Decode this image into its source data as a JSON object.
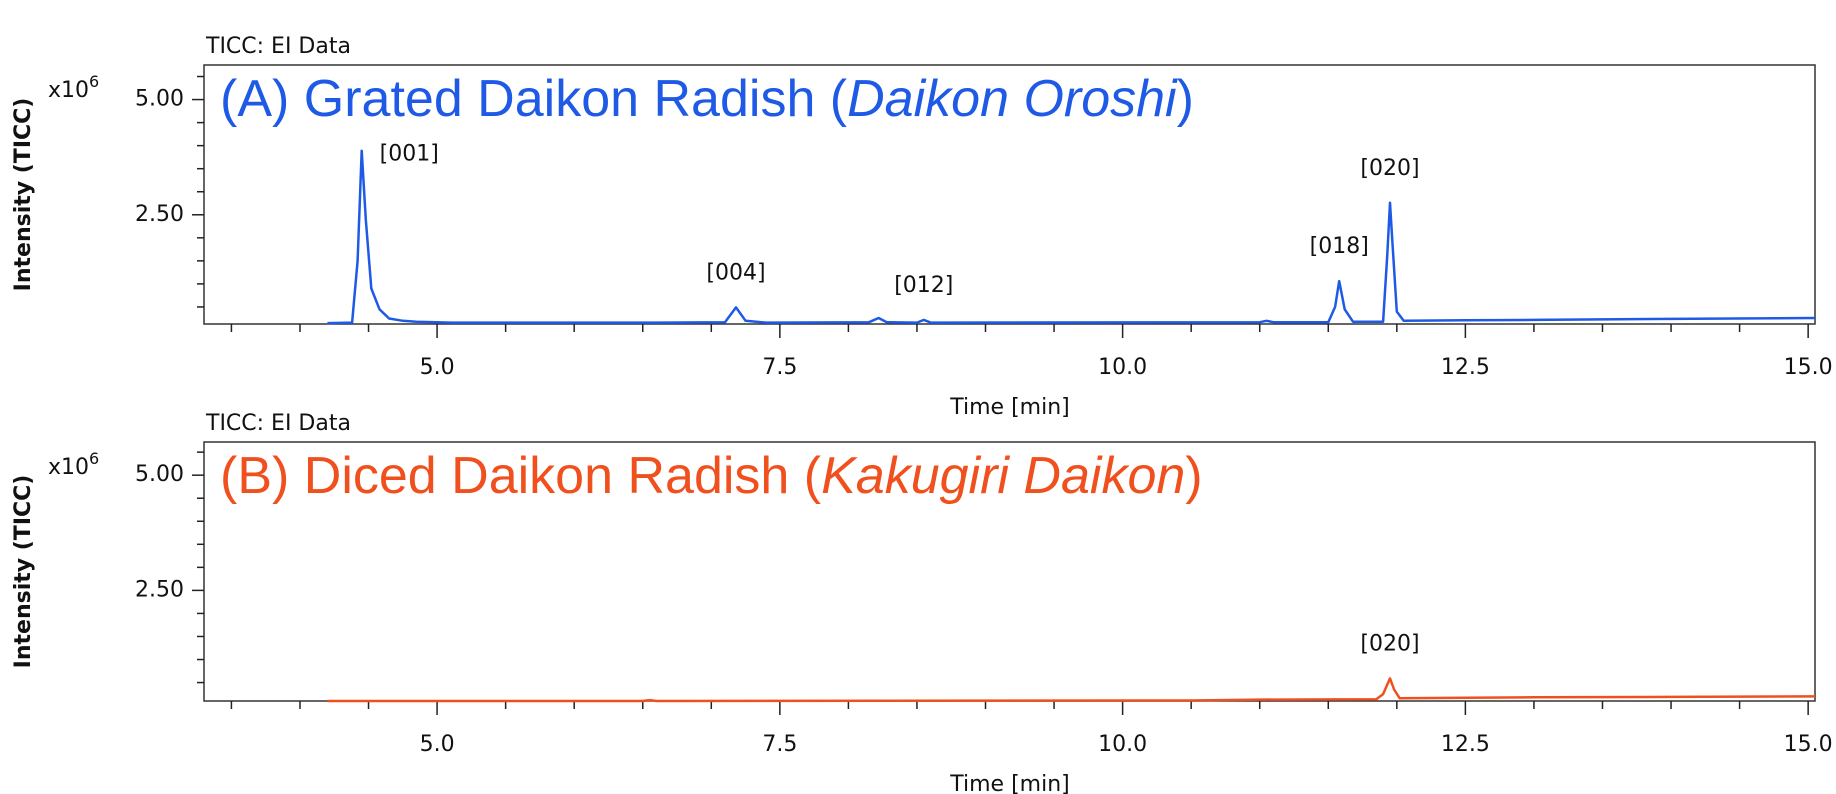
{
  "chart_data": [
    {
      "type": "line",
      "header": "TICC: EI Data",
      "title": [
        "(A) Grated Daikon Radish (",
        "Daikon Oroshi",
        ")"
      ],
      "y_label": "Intensity (TICC)",
      "y_multiplier": {
        "base": "x10",
        "exp": "6"
      },
      "x_label": "Time [min]",
      "color": "#1f5ae6",
      "x": [
        4.2,
        4.38,
        4.42,
        4.45,
        4.48,
        4.52,
        4.58,
        4.65,
        4.75,
        4.85,
        5.1,
        6.6,
        7.1,
        7.18,
        7.25,
        7.4,
        8.15,
        8.22,
        8.28,
        8.5,
        8.55,
        8.6,
        11.0,
        11.05,
        11.1,
        11.5,
        11.55,
        11.58,
        11.62,
        11.68,
        11.9,
        11.93,
        11.95,
        11.97,
        12.0,
        12.05,
        12.5,
        13.0,
        14.0,
        15.05
      ],
      "values": [
        0.15,
        0.16,
        1.5,
        3.89,
        2.4,
        0.9,
        0.45,
        0.25,
        0.2,
        0.18,
        0.16,
        0.16,
        0.17,
        0.49,
        0.2,
        0.16,
        0.17,
        0.26,
        0.17,
        0.16,
        0.22,
        0.16,
        0.17,
        0.2,
        0.17,
        0.17,
        0.5,
        1.06,
        0.45,
        0.18,
        0.18,
        1.6,
        2.76,
        1.8,
        0.4,
        0.2,
        0.21,
        0.22,
        0.24,
        0.26
      ],
      "annotations": [
        {
          "text": "[001]",
          "x": 4.45
        },
        {
          "text": "[004]",
          "x": 7.18
        },
        {
          "text": "[012]",
          "x": 8.55
        },
        {
          "text": "[018]",
          "x": 11.58
        },
        {
          "text": "[020]",
          "x": 11.95
        }
      ],
      "xlim": [
        3.3,
        15.05
      ],
      "ylim": [
        0.13,
        5.75
      ],
      "xticks": [
        {
          "value": 5,
          "label": "5.0"
        },
        {
          "value": 7.5,
          "label": "7.5"
        },
        {
          "value": 10,
          "label": "10.0"
        },
        {
          "value": 12.5,
          "label": "12.5"
        },
        {
          "value": 15,
          "label": "15.0"
        }
      ],
      "xminorticks": [
        3.5,
        4,
        4.5,
        5.5,
        6,
        6.5,
        7,
        8,
        8.5,
        9,
        9.5,
        10.5,
        11,
        11.5,
        12,
        13,
        13.5,
        14,
        14.5
      ],
      "yticks": [
        {
          "value": 2.5,
          "label": "2.50"
        },
        {
          "value": 5,
          "label": "5.00"
        }
      ],
      "yminorticks": [
        0.5,
        1,
        1.5,
        2,
        3,
        3.5,
        4,
        4.5,
        5.5
      ]
    },
    {
      "type": "line",
      "header": "TICC: EI Data",
      "title": [
        "(B) Diced Daikon Radish (",
        "Kakugiri Daikon",
        ")"
      ],
      "y_label": "Intensity (TICC)",
      "y_multiplier": {
        "base": "x10",
        "exp": "6"
      },
      "x_label": "Time [min]",
      "color": "#f0501e",
      "x": [
        4.2,
        6.5,
        6.55,
        6.6,
        10.5,
        11.0,
        11.85,
        11.9,
        11.95,
        11.98,
        12.02,
        12.5,
        13.0,
        14.0,
        15.05
      ],
      "values": [
        0.1,
        0.1,
        0.12,
        0.1,
        0.11,
        0.13,
        0.14,
        0.25,
        0.59,
        0.35,
        0.16,
        0.17,
        0.18,
        0.19,
        0.2
      ],
      "annotations": [
        {
          "text": "[020]",
          "x": 11.95
        }
      ],
      "xlim": [
        3.3,
        15.05
      ],
      "ylim": [
        0.1,
        5.72
      ],
      "xticks": [
        {
          "value": 5,
          "label": "5.0"
        },
        {
          "value": 7.5,
          "label": "7.5"
        },
        {
          "value": 10,
          "label": "10.0"
        },
        {
          "value": 12.5,
          "label": "12.5"
        },
        {
          "value": 15,
          "label": "15.0"
        }
      ],
      "xminorticks": [
        3.5,
        4,
        4.5,
        5.5,
        6,
        6.5,
        7,
        8,
        8.5,
        9,
        9.5,
        10.5,
        11,
        11.5,
        12,
        13,
        13.5,
        14,
        14.5
      ],
      "yticks": [
        {
          "value": 2.5,
          "label": "2.50"
        },
        {
          "value": 5,
          "label": "5.00"
        }
      ],
      "yminorticks": [
        0.5,
        1,
        1.5,
        2,
        3,
        3.5,
        4,
        4.5,
        5.5
      ]
    }
  ]
}
